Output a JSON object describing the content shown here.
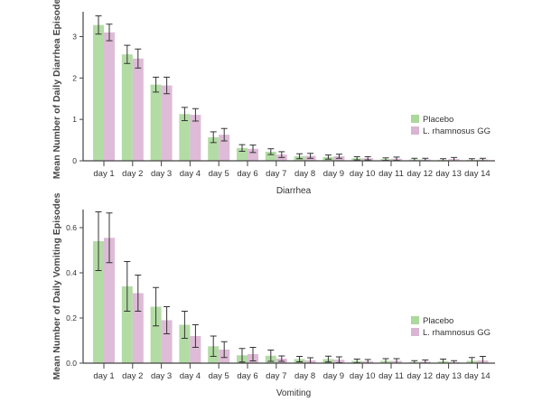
{
  "colors": {
    "placebo": "#abd89b",
    "lgg": "#dab4d3",
    "axis": "#444444",
    "error": "#333333"
  },
  "chart_data": [
    {
      "type": "bar",
      "xlabel": "Diarrhea",
      "ylabel": "Mean Number of Daily Diarrhea Episodes",
      "ylim": [
        0,
        3.6
      ],
      "yticks": [
        0,
        1,
        2,
        3
      ],
      "ytick_labels": [
        "0",
        "1",
        "2",
        "3"
      ],
      "categories": [
        "day 1",
        "day 2",
        "day 3",
        "day 4",
        "day 5",
        "day 6",
        "day 7",
        "day 8",
        "day 9",
        "day 10",
        "day 11",
        "day 12",
        "day 13",
        "day 14"
      ],
      "legend": "right",
      "series": [
        {
          "name": "Placebo",
          "values": [
            3.28,
            2.57,
            1.84,
            1.13,
            0.57,
            0.31,
            0.22,
            0.11,
            0.09,
            0.06,
            0.04,
            0.03,
            0.02,
            0.02
          ],
          "errors": [
            0.22,
            0.22,
            0.18,
            0.16,
            0.13,
            0.08,
            0.07,
            0.06,
            0.05,
            0.04,
            0.03,
            0.03,
            0.03,
            0.03
          ]
        },
        {
          "name": "L. rhamnosus GG",
          "values": [
            3.1,
            2.47,
            1.82,
            1.11,
            0.63,
            0.29,
            0.15,
            0.12,
            0.11,
            0.06,
            0.05,
            0.03,
            0.04,
            0.03
          ],
          "errors": [
            0.2,
            0.23,
            0.2,
            0.15,
            0.15,
            0.09,
            0.07,
            0.06,
            0.05,
            0.04,
            0.04,
            0.03,
            0.04,
            0.03
          ]
        }
      ]
    },
    {
      "type": "bar",
      "xlabel": "Vomiting",
      "ylabel": "Mean Number of Daily Vomiting Episodes",
      "ylim": [
        0,
        0.68
      ],
      "yticks": [
        0,
        0.2,
        0.4,
        0.6
      ],
      "ytick_labels": [
        "0.0",
        "0.2",
        "0.4",
        "0.6"
      ],
      "categories": [
        "day 1",
        "day 2",
        "day 3",
        "day 4",
        "day 5",
        "day 6",
        "day 7",
        "day 8",
        "day 9",
        "day 10",
        "day 11",
        "day 12",
        "day 13",
        "day 14"
      ],
      "legend": "right",
      "series": [
        {
          "name": "Placebo",
          "values": [
            0.54,
            0.34,
            0.25,
            0.17,
            0.075,
            0.035,
            0.033,
            0.018,
            0.018,
            0.01,
            0.01,
            0.005,
            0.008,
            0.01
          ],
          "errors": [
            0.13,
            0.11,
            0.085,
            0.06,
            0.045,
            0.03,
            0.025,
            0.012,
            0.013,
            0.008,
            0.01,
            0.006,
            0.01,
            0.015
          ]
        },
        {
          "name": "L. rhamnosus GG",
          "values": [
            0.555,
            0.31,
            0.19,
            0.12,
            0.06,
            0.04,
            0.02,
            0.012,
            0.015,
            0.008,
            0.01,
            0.007,
            0.005,
            0.012
          ],
          "errors": [
            0.11,
            0.08,
            0.06,
            0.05,
            0.035,
            0.03,
            0.012,
            0.012,
            0.013,
            0.008,
            0.01,
            0.007,
            0.006,
            0.018
          ]
        }
      ]
    }
  ]
}
